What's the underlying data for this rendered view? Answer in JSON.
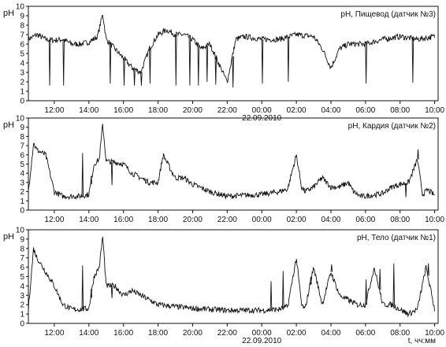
{
  "chart_data": [
    {
      "type": "line",
      "title": "pH, Пищевод (датчик №3)",
      "ylabel": "pH",
      "ylim": [
        0,
        10
      ],
      "yticks": [
        0,
        1,
        2,
        3,
        4,
        5,
        6,
        7,
        8,
        9,
        10
      ],
      "xlim": [
        10.5,
        34.2
      ],
      "xtick_labels": [
        "12:00",
        "14:00",
        "16:00",
        "18:00",
        "20:00",
        "22:00",
        "00:00",
        "02:00",
        "04:00",
        "06:00",
        "08:00",
        "10:00"
      ],
      "xtick_hours": [
        12,
        14,
        16,
        18,
        20,
        22,
        24,
        26,
        28,
        30,
        32,
        34
      ],
      "date_label": "22.09.2010",
      "grid": false,
      "series": [
        {
          "x": [
            10.5,
            11.0,
            11.5,
            12.0,
            12.5,
            13.0,
            13.5,
            14.0,
            14.5,
            14.8,
            15.0,
            15.5,
            16.0,
            16.5,
            17.0,
            17.5,
            18.0,
            18.5,
            19.0,
            19.5,
            20.0,
            20.5,
            21.0,
            21.5,
            22.0,
            22.5,
            23.0,
            24.0,
            25.0,
            26.0,
            27.0,
            27.5,
            28.0,
            28.5,
            29.0,
            30.0,
            31.0,
            32.0,
            33.0,
            34.0
          ],
          "y": [
            6.5,
            7.0,
            6.5,
            6.4,
            6.5,
            6.0,
            6.0,
            6.2,
            6.8,
            9.2,
            6.5,
            5.5,
            4.5,
            3.5,
            3.0,
            5.5,
            7.0,
            7.5,
            7.0,
            7.0,
            6.5,
            5.5,
            6.0,
            4.0,
            2.0,
            6.5,
            6.8,
            6.5,
            6.5,
            7.0,
            6.8,
            5.5,
            3.5,
            5.5,
            6.0,
            6.0,
            6.5,
            6.8,
            6.5,
            6.8
          ]
        }
      ],
      "spikes": [
        [
          11.7,
          1.6
        ],
        [
          12.5,
          1.6
        ],
        [
          15.2,
          1.8
        ],
        [
          16.0,
          1.6
        ],
        [
          16.6,
          1.6
        ],
        [
          17.0,
          1.6
        ],
        [
          17.5,
          1.8
        ],
        [
          19.0,
          1.6
        ],
        [
          19.8,
          1.6
        ],
        [
          20.3,
          1.6
        ],
        [
          20.8,
          2.0
        ],
        [
          21.3,
          1.7
        ],
        [
          22.3,
          1.4
        ],
        [
          24.0,
          1.8
        ],
        [
          25.5,
          2.0
        ],
        [
          30.0,
          1.8
        ],
        [
          32.7,
          1.9
        ]
      ]
    },
    {
      "type": "line",
      "title": "pH, Кардия (датчик №2)",
      "ylabel": "pH",
      "ylim": [
        0,
        10
      ],
      "yticks": [
        0,
        1,
        2,
        3,
        4,
        5,
        6,
        7,
        8,
        9,
        10
      ],
      "xlim": [
        10.5,
        34.2
      ],
      "xtick_labels": [
        "12:00",
        "14:00",
        "16:00",
        "18:00",
        "20:00",
        "22:00",
        "00:00",
        "02:00",
        "04:00",
        "06:00",
        "08:00",
        "10:00"
      ],
      "xtick_hours": [
        12,
        14,
        16,
        18,
        20,
        22,
        24,
        26,
        28,
        30,
        32,
        34
      ],
      "date_label": "",
      "grid": false,
      "series": [
        {
          "x": [
            10.5,
            10.8,
            11.0,
            11.5,
            12.0,
            12.5,
            13.0,
            13.5,
            14.0,
            14.3,
            14.6,
            14.8,
            15.0,
            15.5,
            16.0,
            16.5,
            17.0,
            17.5,
            18.0,
            18.3,
            18.7,
            19.0,
            19.5,
            20.0,
            21.0,
            22.0,
            23.0,
            24.0,
            25.0,
            25.5,
            26.0,
            26.3,
            26.5,
            27.0,
            27.5,
            28.0,
            28.5,
            29.0,
            29.3,
            29.7,
            30.0,
            31.0,
            31.5,
            32.0,
            32.5,
            33.0,
            33.3,
            33.6,
            34.0
          ],
          "y": [
            2.0,
            7.3,
            6.5,
            6.0,
            2.0,
            1.5,
            1.5,
            1.5,
            1.7,
            5.0,
            5.5,
            9.3,
            5.3,
            5.2,
            5.0,
            4.0,
            3.5,
            3.0,
            3.0,
            6.0,
            4.5,
            3.5,
            3.5,
            2.8,
            2.0,
            1.5,
            1.6,
            1.7,
            2.0,
            2.3,
            6.0,
            2.5,
            2.0,
            2.5,
            3.5,
            2.5,
            2.5,
            3.0,
            2.0,
            1.5,
            1.5,
            1.8,
            2.5,
            2.8,
            3.0,
            5.5,
            1.7,
            2.2,
            1.6
          ]
        }
      ],
      "spikes": [
        [
          13.6,
          6.2
        ],
        [
          14.1,
          3.7
        ],
        [
          15.3,
          2.7
        ],
        [
          27.4,
          3.5
        ],
        [
          33.0,
          6.6
        ],
        [
          32.3,
          1.4
        ]
      ]
    },
    {
      "type": "line",
      "title": "pH, Тело (датчик №1)",
      "ylabel": "pH",
      "ylim": [
        0,
        10
      ],
      "yticks": [
        0,
        1,
        2,
        3,
        4,
        5,
        6,
        7,
        8,
        9,
        10
      ],
      "xlim": [
        10.5,
        34.2
      ],
      "xtick_labels": [
        "12:00",
        "14:00",
        "16:00",
        "18:00",
        "20:00",
        "22:00",
        "00:00",
        "02:00",
        "04:00",
        "06:00",
        "08:00",
        "10:00"
      ],
      "xtick_hours": [
        12,
        14,
        16,
        18,
        20,
        22,
        24,
        26,
        28,
        30,
        32,
        34
      ],
      "date_label": "22.09.2010",
      "axis_unit_label": "t, чч:мм",
      "grid": false,
      "series": [
        {
          "x": [
            10.5,
            10.8,
            11.0,
            11.5,
            12.0,
            12.5,
            13.0,
            13.5,
            14.0,
            14.3,
            14.6,
            14.8,
            15.0,
            15.5,
            16.0,
            16.5,
            17.0,
            17.5,
            18.0,
            19.0,
            20.0,
            21.0,
            22.0,
            23.0,
            24.0,
            25.0,
            25.5,
            26.0,
            26.3,
            26.5,
            27.0,
            27.5,
            28.0,
            28.5,
            29.0,
            29.5,
            30.0,
            30.5,
            31.0,
            31.5,
            32.0,
            32.5,
            33.0,
            33.5,
            34.0
          ],
          "y": [
            1.5,
            8.0,
            7.0,
            5.5,
            4.0,
            2.0,
            1.5,
            1.5,
            1.6,
            5.0,
            6.0,
            9.3,
            4.0,
            4.0,
            3.0,
            3.5,
            3.0,
            2.5,
            2.0,
            1.8,
            1.6,
            1.5,
            1.4,
            1.4,
            1.4,
            1.5,
            1.8,
            7.0,
            2.0,
            1.5,
            6.0,
            2.0,
            5.5,
            3.0,
            2.5,
            2.0,
            2.0,
            6.0,
            2.0,
            2.0,
            1.5,
            1.0,
            1.5,
            6.0,
            1.5
          ]
        }
      ],
      "spikes": [
        [
          13.6,
          6.2
        ],
        [
          14.1,
          3.7
        ],
        [
          15.3,
          2.7
        ],
        [
          24.5,
          4.5
        ],
        [
          25.2,
          5.6
        ],
        [
          26.8,
          5.0
        ],
        [
          28.0,
          6.3
        ],
        [
          30.0,
          4.7
        ],
        [
          30.8,
          5.8
        ],
        [
          31.6,
          6.4
        ],
        [
          32.3,
          0.9
        ],
        [
          33.6,
          6.4
        ]
      ]
    }
  ]
}
